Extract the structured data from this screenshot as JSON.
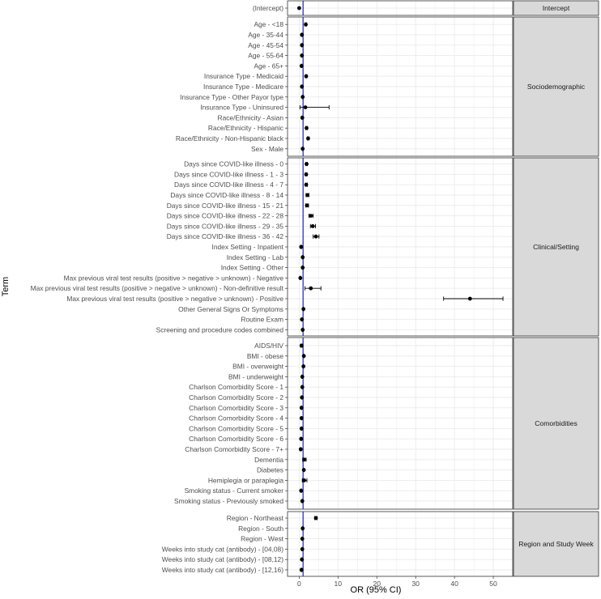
{
  "chart_data": {
    "type": "scatter",
    "subtype": "forest-plot",
    "xlabel": "OR (95% CI)",
    "ylabel": "Term",
    "xlim": [
      -3,
      55
    ],
    "x_ticks": [
      0,
      10,
      20,
      30,
      40,
      50
    ],
    "reference_line": 1,
    "grid": true,
    "colors": {
      "point": "#000000",
      "reference": "#1f1fb4",
      "strip": "#d9d9d9",
      "grid": "#ebebeb"
    },
    "panels": [
      {
        "name": "Intercept",
        "terms": [
          {
            "term": "(Intercept)",
            "or": 0.0,
            "lo": 0.0,
            "hi": 0.0
          }
        ]
      },
      {
        "name": "Sociodemographic",
        "terms": [
          {
            "term": "Age - <18",
            "or": 1.7,
            "lo": 1.5,
            "hi": 1.9
          },
          {
            "term": "Age - 35-44",
            "or": 0.7,
            "lo": 0.6,
            "hi": 0.8
          },
          {
            "term": "Age - 45-54",
            "or": 0.7,
            "lo": 0.6,
            "hi": 0.8
          },
          {
            "term": "Age - 55-64",
            "or": 0.7,
            "lo": 0.6,
            "hi": 0.8
          },
          {
            "term": "Age - 65+",
            "or": 0.6,
            "lo": 0.5,
            "hi": 0.7
          },
          {
            "term": "Insurance Type - Medicaid",
            "or": 1.8,
            "lo": 1.6,
            "hi": 2.0
          },
          {
            "term": "Insurance Type - Medicare",
            "or": 0.7,
            "lo": 0.6,
            "hi": 0.8
          },
          {
            "term": "Insurance Type - Other Payor type",
            "or": 0.9,
            "lo": 0.8,
            "hi": 1.0
          },
          {
            "term": "Insurance Type - Uninsured",
            "or": 1.6,
            "lo": 0.2,
            "hi": 7.7
          },
          {
            "term": "Race/Ethnicity - Asian",
            "or": 0.8,
            "lo": 0.7,
            "hi": 0.9
          },
          {
            "term": "Race/Ethnicity - Hispanic",
            "or": 1.9,
            "lo": 1.7,
            "hi": 2.1
          },
          {
            "term": "Race/Ethnicity - Non-Hispanic black",
            "or": 2.3,
            "lo": 2.1,
            "hi": 2.5
          },
          {
            "term": "Sex - Male",
            "or": 0.9,
            "lo": 0.8,
            "hi": 1.0
          }
        ]
      },
      {
        "name": "Clinical/Setting",
        "terms": [
          {
            "term": "Days since COVID-like illness - 0",
            "or": 1.9,
            "lo": 1.7,
            "hi": 2.1
          },
          {
            "term": "Days since COVID-like illness - 1 - 3",
            "or": 1.8,
            "lo": 1.6,
            "hi": 2.0
          },
          {
            "term": "Days since COVID-like illness - 4 - 7",
            "or": 1.8,
            "lo": 1.6,
            "hi": 2.1
          },
          {
            "term": "Days since COVID-like illness - 8 - 14",
            "or": 2.1,
            "lo": 1.8,
            "hi": 2.5
          },
          {
            "term": "Days since COVID-like illness - 15 - 21",
            "or": 2.0,
            "lo": 1.7,
            "hi": 2.4
          },
          {
            "term": "Days since COVID-like illness - 22 - 28",
            "or": 3.0,
            "lo": 2.5,
            "hi": 3.6
          },
          {
            "term": "Days since COVID-like illness - 29 - 35",
            "or": 3.5,
            "lo": 2.9,
            "hi": 4.2
          },
          {
            "term": "Days since COVID-like illness - 36 - 42",
            "or": 4.3,
            "lo": 3.6,
            "hi": 5.1
          },
          {
            "term": "Index Setting - Inpatient",
            "or": 0.5,
            "lo": 0.4,
            "hi": 0.6
          },
          {
            "term": "Index Setting - Lab",
            "or": 0.9,
            "lo": 0.8,
            "hi": 1.0
          },
          {
            "term": "Index Setting - Other",
            "or": 0.9,
            "lo": 0.8,
            "hi": 1.0
          },
          {
            "term": "Max previous viral test results (positive > negative > unknown) - Negative",
            "or": 0.3,
            "lo": 0.2,
            "hi": 0.4
          },
          {
            "term": "Max previous viral test results (positive > negative > unknown) - Non-definitive result",
            "or": 3.0,
            "lo": 1.5,
            "hi": 5.6
          },
          {
            "term": "Max previous viral test results (positive > negative > unknown) - Positive",
            "or": 44.0,
            "lo": 37.2,
            "hi": 52.5
          },
          {
            "term": "Other General Signs Or Symptoms",
            "or": 1.1,
            "lo": 1.0,
            "hi": 1.2
          },
          {
            "term": "Routine Exam",
            "or": 0.7,
            "lo": 0.6,
            "hi": 0.8
          },
          {
            "term": "Screening and procedure codes combined",
            "or": 0.9,
            "lo": 0.8,
            "hi": 1.0
          }
        ]
      },
      {
        "name": "Comorbidities",
        "terms": [
          {
            "term": "AIDS/HIV",
            "or": 0.6,
            "lo": 0.4,
            "hi": 0.8
          },
          {
            "term": "BMI - obese",
            "or": 1.2,
            "lo": 1.1,
            "hi": 1.3
          },
          {
            "term": "BMI - overweight",
            "or": 1.1,
            "lo": 1.0,
            "hi": 1.2
          },
          {
            "term": "BMI - underweight",
            "or": 0.8,
            "lo": 0.7,
            "hi": 0.9
          },
          {
            "term": "Charlson Comorbidity Score - 1",
            "or": 0.8,
            "lo": 0.7,
            "hi": 0.9
          },
          {
            "term": "Charlson Comorbidity Score - 2",
            "or": 0.7,
            "lo": 0.6,
            "hi": 0.8
          },
          {
            "term": "Charlson Comorbidity Score - 3",
            "or": 0.6,
            "lo": 0.5,
            "hi": 0.7
          },
          {
            "term": "Charlson Comorbidity Score - 4",
            "or": 0.6,
            "lo": 0.5,
            "hi": 0.7
          },
          {
            "term": "Charlson Comorbidity Score - 5",
            "or": 0.6,
            "lo": 0.5,
            "hi": 0.7
          },
          {
            "term": "Charlson Comorbidity Score - 6",
            "or": 0.5,
            "lo": 0.4,
            "hi": 0.6
          },
          {
            "term": "Charlson Comorbidity Score - 7+",
            "or": 0.4,
            "lo": 0.3,
            "hi": 0.5
          },
          {
            "term": "Dementia",
            "or": 1.3,
            "lo": 0.9,
            "hi": 1.8
          },
          {
            "term": "Diabetes",
            "or": 1.2,
            "lo": 1.1,
            "hi": 1.3
          },
          {
            "term": "Hemiplegia or paraplegia",
            "or": 1.3,
            "lo": 0.8,
            "hi": 2.0
          },
          {
            "term": "Smoking status - Current smoker",
            "or": 0.5,
            "lo": 0.4,
            "hi": 0.6
          },
          {
            "term": "Smoking status - Previously smoked",
            "or": 0.8,
            "lo": 0.7,
            "hi": 0.9
          }
        ]
      },
      {
        "name": "Region and Study Week",
        "terms": [
          {
            "term": "Region - Northeast",
            "or": 4.3,
            "lo": 4.0,
            "hi": 4.6
          },
          {
            "term": "Region - South",
            "or": 0.9,
            "lo": 0.8,
            "hi": 1.0
          },
          {
            "term": "Region - West",
            "or": 0.8,
            "lo": 0.7,
            "hi": 0.9
          },
          {
            "term": "Weeks into study cat (antibody) - [04,08)",
            "or": 0.8,
            "lo": 0.7,
            "hi": 0.9
          },
          {
            "term": "Weeks into study cat (antibody) - [08,12)",
            "or": 0.7,
            "lo": 0.6,
            "hi": 0.8
          },
          {
            "term": "Weeks into study cat (antibody) - [12,16)",
            "or": 0.6,
            "lo": 0.5,
            "hi": 0.7
          }
        ]
      }
    ]
  }
}
